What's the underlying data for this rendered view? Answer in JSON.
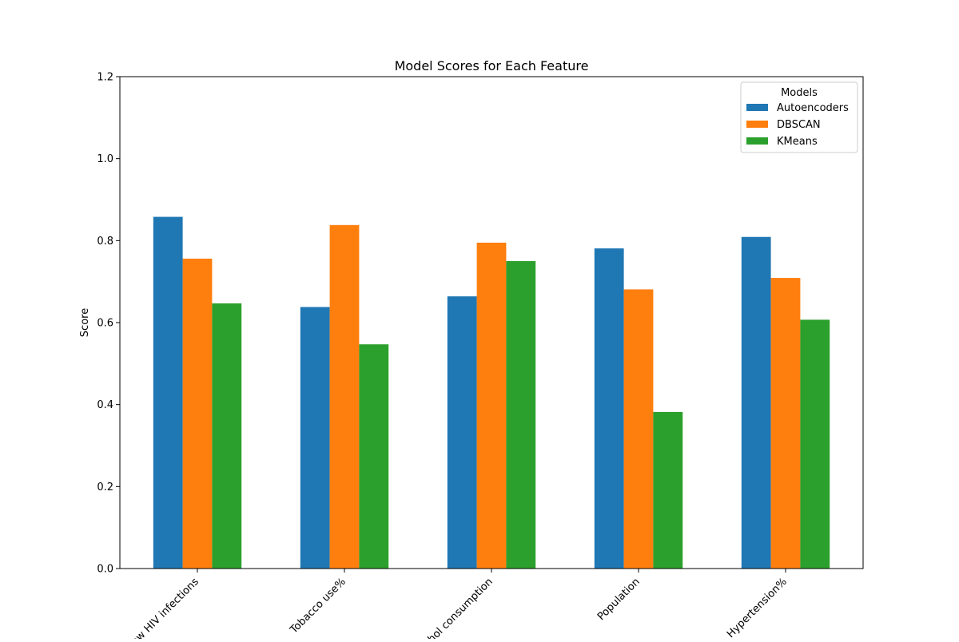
{
  "chart_data": {
    "type": "bar",
    "title": "Model Scores for Each Feature",
    "xlabel": "",
    "ylabel": "Score",
    "categories": [
      "New HIV infections",
      "Tobacco use%",
      "Alcohol consumption",
      "Population",
      "Hypertension%"
    ],
    "series": [
      {
        "name": "Autoencoders",
        "color": "#1f77b4",
        "values": [
          0.858,
          0.638,
          0.664,
          0.781,
          0.809
        ]
      },
      {
        "name": "DBSCAN",
        "color": "#ff7f0e",
        "values": [
          0.756,
          0.838,
          0.795,
          0.681,
          0.709
        ]
      },
      {
        "name": "KMeans",
        "color": "#2ca02c",
        "values": [
          0.647,
          0.547,
          0.75,
          0.382,
          0.607
        ]
      }
    ],
    "ylim": [
      0,
      1.2
    ],
    "yticks": [
      0.0,
      0.2,
      0.4,
      0.6,
      0.8,
      1.0,
      1.2
    ],
    "ytick_labels": [
      "0.0",
      "0.2",
      "0.4",
      "0.6",
      "0.8",
      "1.0",
      "1.2"
    ],
    "grid": false,
    "legend": {
      "title": "Models",
      "placement": "top-right"
    }
  }
}
